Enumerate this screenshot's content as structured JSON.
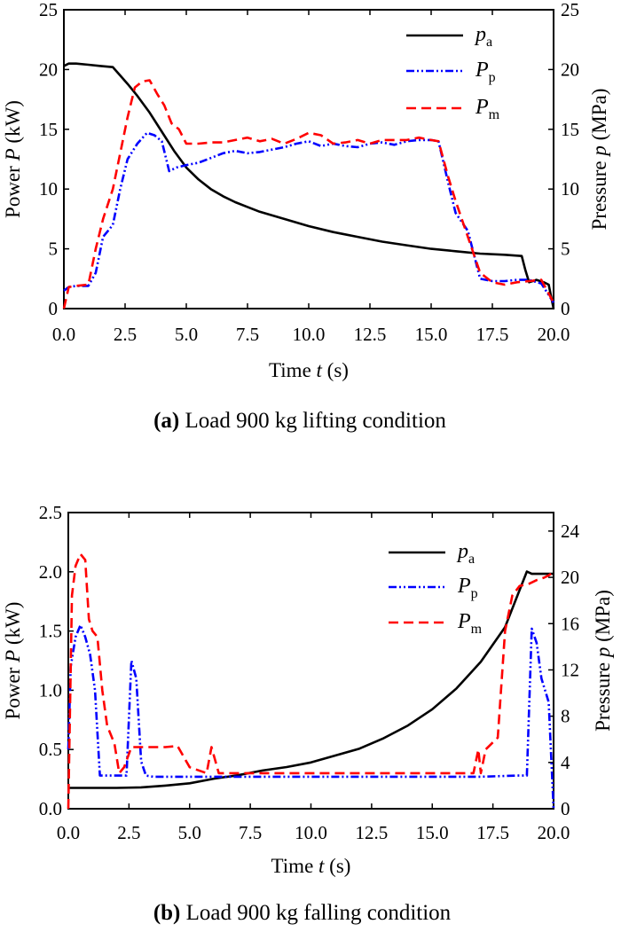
{
  "chart_data": [
    {
      "type": "line",
      "caption_prefix": "(a)",
      "caption": "Load 900 kg lifting condition",
      "xlabel_text": "Time ",
      "xlabel_var": "t",
      "xlabel_unit": " (s)",
      "ylabel_text": "Power ",
      "ylabel_var": "P",
      "ylabel_unit": " (kW)",
      "y2label_text": "Pressure ",
      "y2label_var": "p",
      "y2label_unit": " (MPa)",
      "xlim": [
        0,
        20
      ],
      "ylim": [
        0,
        25
      ],
      "y2lim": [
        0,
        25
      ],
      "x_ticks": [
        "0.0",
        "2.5",
        "5.0",
        "7.5",
        "10.0",
        "12.5",
        "15.0",
        "17.5",
        "20.0"
      ],
      "y_ticks": [
        "0",
        "5",
        "10",
        "15",
        "20",
        "25"
      ],
      "y2_ticks": [
        "0",
        "5",
        "10",
        "15",
        "20",
        "25"
      ],
      "legend_position": "top-right",
      "grid": false,
      "series": [
        {
          "name": "p",
          "subscript": "a",
          "axis": "right",
          "color": "#000000",
          "style": "solid",
          "x": [
            0,
            0.2,
            0.5,
            1,
            1.5,
            2,
            2.3,
            2.6,
            3,
            3.5,
            4,
            4.5,
            5,
            5.5,
            6,
            6.5,
            7,
            7.5,
            8,
            9,
            10,
            11,
            12,
            13,
            14,
            15,
            16,
            17,
            18,
            18.7,
            18.85,
            19,
            19.3,
            19.6,
            19.8,
            20
          ],
          "y": [
            20.3,
            20.5,
            20.5,
            20.4,
            20.3,
            20.2,
            19.5,
            18.8,
            17.8,
            16.4,
            14.8,
            13.2,
            11.8,
            10.8,
            10.0,
            9.4,
            8.9,
            8.5,
            8.1,
            7.5,
            6.9,
            6.4,
            6.0,
            5.6,
            5.3,
            5.0,
            4.8,
            4.6,
            4.5,
            4.4,
            3.2,
            2.2,
            2.4,
            2.2,
            2.0,
            0.0
          ]
        },
        {
          "name": "P",
          "subscript": "p",
          "axis": "left",
          "color": "#0000ff",
          "style": "dashdotdot",
          "x": [
            0,
            0.2,
            0.5,
            1,
            1.3,
            1.6,
            2,
            2.3,
            2.6,
            3,
            3.4,
            3.7,
            4,
            4.3,
            4.6,
            5,
            5.5,
            6,
            6.5,
            7,
            7.5,
            8,
            8.5,
            9,
            9.5,
            10,
            10.5,
            11,
            11.5,
            12,
            12.5,
            13,
            13.5,
            14,
            14.5,
            15,
            15.3,
            15.7,
            16,
            16.5,
            17,
            17.5,
            18,
            18.5,
            19,
            19.5,
            20
          ],
          "y": [
            1.5,
            1.8,
            1.9,
            1.9,
            3.0,
            6.0,
            7.0,
            10.0,
            12.5,
            13.8,
            14.7,
            14.5,
            14.0,
            11.5,
            11.8,
            12.0,
            12.2,
            12.6,
            13.0,
            13.2,
            13.0,
            13.1,
            13.3,
            13.5,
            13.8,
            14.0,
            13.6,
            13.8,
            13.6,
            13.5,
            13.8,
            13.9,
            13.7,
            14.0,
            14.1,
            14.1,
            14.0,
            10.5,
            8.0,
            6.5,
            2.5,
            2.3,
            2.3,
            2.4,
            2.4,
            2.1,
            0.5
          ]
        },
        {
          "name": "P",
          "subscript": "m",
          "axis": "left",
          "color": "#ff0000",
          "style": "dashed",
          "x": [
            0,
            0.2,
            0.5,
            1,
            1.3,
            1.6,
            2,
            2.3,
            2.6,
            2.9,
            3.2,
            3.5,
            3.8,
            4.1,
            4.4,
            4.7,
            5,
            5.5,
            6,
            6.5,
            7,
            7.5,
            8,
            8.5,
            9,
            9.5,
            10,
            10.5,
            11,
            11.5,
            12,
            12.5,
            13,
            13.5,
            14,
            14.5,
            15,
            15.3,
            15.7,
            16,
            16.5,
            17,
            17.5,
            18,
            18.5,
            19,
            19.5,
            20
          ],
          "y": [
            0.0,
            1.8,
            1.9,
            2.0,
            5.0,
            7.5,
            10.0,
            13.0,
            16.0,
            18.5,
            19.0,
            19.1,
            18.0,
            17.0,
            15.5,
            15.0,
            13.8,
            13.8,
            13.9,
            13.9,
            14.1,
            14.3,
            14.0,
            14.2,
            13.8,
            14.2,
            14.7,
            14.5,
            13.8,
            13.9,
            14.1,
            13.8,
            14.1,
            14.1,
            14.1,
            14.3,
            14.1,
            14.0,
            11.0,
            9.0,
            6.0,
            3.0,
            2.2,
            2.0,
            2.2,
            2.3,
            2.4,
            0.5
          ]
        }
      ]
    },
    {
      "type": "line",
      "caption_prefix": "(b)",
      "caption": "Load 900 kg falling condition",
      "xlabel_text": "Time ",
      "xlabel_var": "t",
      "xlabel_unit": " (s)",
      "ylabel_text": "Power ",
      "ylabel_var": "P",
      "ylabel_unit": " (kW)",
      "y2label_text": "Pressure ",
      "y2label_var": "p",
      "y2label_unit": " (MPa)",
      "xlim": [
        0,
        20
      ],
      "ylim": [
        0,
        2.5
      ],
      "y2lim": [
        0,
        25.6
      ],
      "x_ticks": [
        "0.0",
        "2.5",
        "5.0",
        "7.5",
        "10.0",
        "12.5",
        "15.0",
        "17.5",
        "20.0"
      ],
      "y_ticks": [
        "0.0",
        "0.5",
        "1.0",
        "1.5",
        "2.0",
        "2.5"
      ],
      "y2_ticks": [
        "0",
        "4",
        "8",
        "12",
        "16",
        "20",
        "24"
      ],
      "legend_position": "top-right",
      "grid": false,
      "series": [
        {
          "name": "p",
          "subscript": "a",
          "axis": "right",
          "color": "#000000",
          "style": "solid",
          "x": [
            0,
            1,
            2,
            3,
            4,
            5,
            6,
            7,
            8,
            9,
            10,
            11,
            12,
            13,
            14,
            15,
            16,
            17,
            18,
            18.9,
            19.1,
            19.5,
            20
          ],
          "y": [
            1.8,
            1.8,
            1.8,
            1.85,
            2.0,
            2.2,
            2.6,
            2.9,
            3.3,
            3.6,
            4.0,
            4.6,
            5.2,
            6.1,
            7.2,
            8.6,
            10.4,
            12.7,
            15.7,
            20.5,
            20.3,
            20.3,
            20.3
          ]
        },
        {
          "name": "P",
          "subscript": "p",
          "axis": "left",
          "color": "#0000ff",
          "style": "dashdotdot",
          "x": [
            0,
            0.1,
            0.3,
            0.5,
            0.7,
            0.9,
            1.1,
            1.3,
            1.5,
            2.0,
            2.4,
            2.6,
            2.8,
            3.0,
            3.2,
            3.5,
            5,
            7,
            9,
            11,
            13,
            15,
            17,
            18.5,
            18.9,
            19.1,
            19.3,
            19.5,
            19.8,
            20
          ],
          "y": [
            0.5,
            1.2,
            1.45,
            1.55,
            1.45,
            1.3,
            1.0,
            0.28,
            0.28,
            0.28,
            0.28,
            1.25,
            1.1,
            0.4,
            0.28,
            0.27,
            0.27,
            0.27,
            0.27,
            0.27,
            0.27,
            0.27,
            0.27,
            0.28,
            0.28,
            1.52,
            1.4,
            1.1,
            0.9,
            0.0
          ]
        },
        {
          "name": "P",
          "subscript": "m",
          "axis": "left",
          "color": "#ff0000",
          "style": "dashed",
          "x": [
            0,
            0.15,
            0.3,
            0.5,
            0.7,
            0.85,
            1.0,
            1.2,
            1.4,
            1.6,
            1.9,
            2.1,
            2.3,
            2.6,
            3,
            4,
            4.5,
            5,
            5.7,
            5.9,
            6.2,
            7,
            8,
            9,
            10,
            11,
            12,
            13,
            14,
            15,
            16,
            16.7,
            16.9,
            17.0,
            17.2,
            17.7,
            18.0,
            18.3,
            18.6,
            19.0,
            19.3,
            19.6,
            19.8,
            20
          ],
          "y": [
            0.0,
            1.8,
            2.05,
            2.15,
            2.1,
            1.6,
            1.5,
            1.45,
            1.0,
            0.7,
            0.55,
            0.3,
            0.35,
            0.52,
            0.52,
            0.52,
            0.53,
            0.35,
            0.3,
            0.52,
            0.3,
            0.3,
            0.3,
            0.3,
            0.3,
            0.3,
            0.3,
            0.3,
            0.3,
            0.3,
            0.3,
            0.3,
            0.5,
            0.3,
            0.5,
            0.6,
            1.5,
            1.8,
            1.88,
            1.9,
            1.93,
            1.95,
            1.97,
            2.0
          ]
        }
      ]
    }
  ]
}
